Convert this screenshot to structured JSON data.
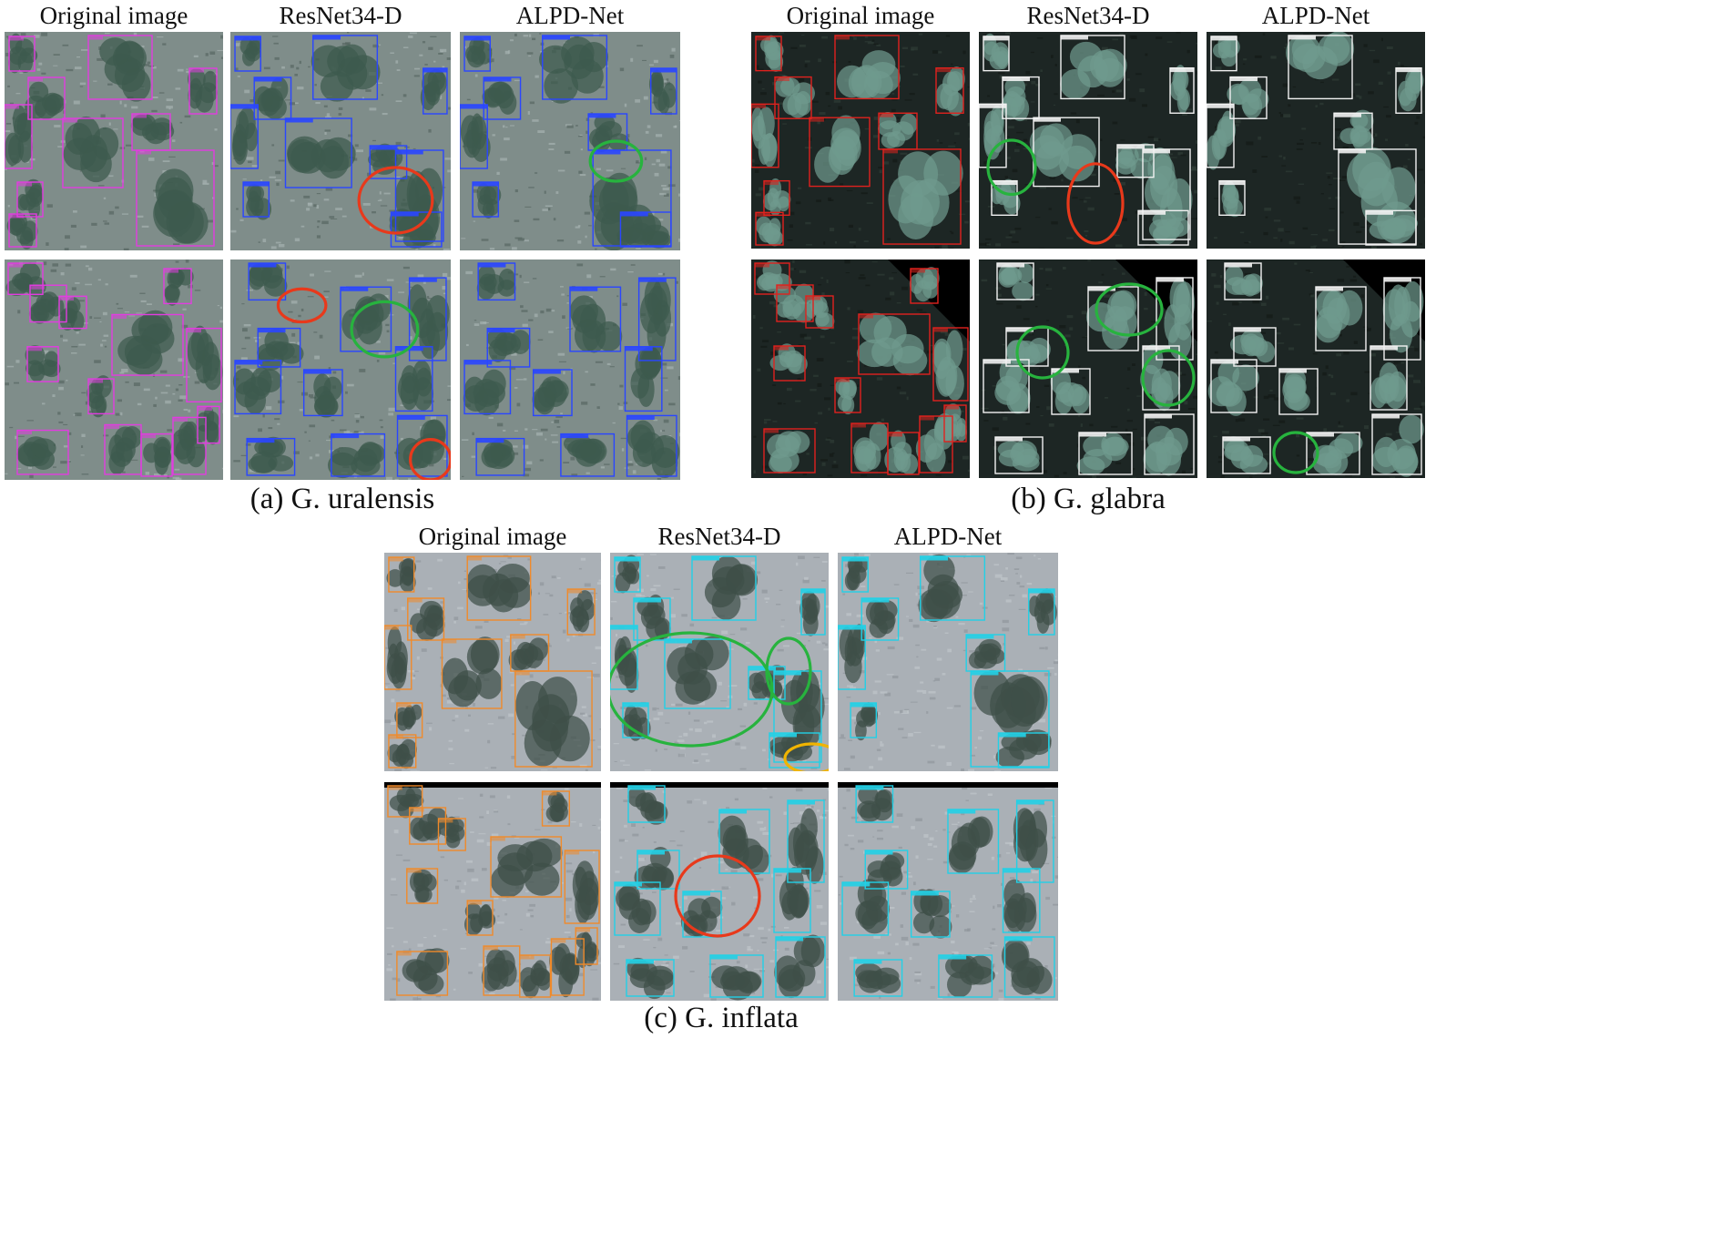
{
  "groups": [
    {
      "id": "uralensis",
      "caption": "(a) G. uralensis",
      "columns": [
        "Original image",
        "ResNet34-D",
        "ALPD-Net"
      ],
      "label_text": "uralensis",
      "box_colors": {
        "original": "#e23ce0",
        "detection": "#2a46ff"
      },
      "ground_style": "speckle",
      "panels": [
        {
          "id": "a-orig-1",
          "row": 1,
          "column": "Original image",
          "marks": []
        },
        {
          "id": "a-res-1",
          "row": 1,
          "column": "ResNet34-D",
          "marks": [
            {
              "type": "missed",
              "color": "#e8391b"
            }
          ]
        },
        {
          "id": "a-alpd-1",
          "row": 1,
          "column": "ALPD-Net",
          "marks": [
            {
              "type": "false-detection",
              "color": "#27b33e"
            }
          ]
        },
        {
          "id": "a-orig-2",
          "row": 2,
          "column": "Original image",
          "marks": []
        },
        {
          "id": "a-res-2",
          "row": 2,
          "column": "ResNet34-D",
          "marks": [
            {
              "type": "missed",
              "color": "#e8391b"
            },
            {
              "type": "false-detection",
              "color": "#27b33e"
            },
            {
              "type": "missed",
              "color": "#e8391b"
            }
          ]
        },
        {
          "id": "a-alpd-2",
          "row": 2,
          "column": "ALPD-Net",
          "marks": []
        }
      ]
    },
    {
      "id": "glabra",
      "caption": "(b) G. glabra",
      "columns": [
        "Original image",
        "ResNet34-D",
        "ALPD-Net"
      ],
      "label_text": "glabra",
      "box_colors": {
        "original": "#e0221e",
        "detection": "#f2f2f2"
      },
      "ground_style": "dark",
      "panels": [
        {
          "id": "b-orig-1",
          "row": 1,
          "column": "Original image",
          "marks": []
        },
        {
          "id": "b-res-1",
          "row": 1,
          "column": "ResNet34-D",
          "marks": [
            {
              "type": "false-detection",
              "color": "#27b33e"
            },
            {
              "type": "missed",
              "color": "#e8391b"
            }
          ]
        },
        {
          "id": "b-alpd-1",
          "row": 1,
          "column": "ALPD-Net",
          "marks": []
        },
        {
          "id": "b-orig-2",
          "row": 2,
          "column": "Original image",
          "marks": []
        },
        {
          "id": "b-res-2",
          "row": 2,
          "column": "ResNet34-D",
          "marks": [
            {
              "type": "false-detection",
              "color": "#27b33e"
            },
            {
              "type": "false-detection",
              "color": "#27b33e"
            },
            {
              "type": "false-detection",
              "color": "#27b33e"
            }
          ]
        },
        {
          "id": "b-alpd-2",
          "row": 2,
          "column": "ALPD-Net",
          "marks": [
            {
              "type": "false-detection",
              "color": "#27b33e"
            }
          ]
        }
      ]
    },
    {
      "id": "inflata",
      "caption": "(c) G. inflata",
      "columns": [
        "Original image",
        "ResNet34-D",
        "ALPD-Net"
      ],
      "label_text": "inflata",
      "box_colors": {
        "original": "#f08a2a",
        "detection": "#22d0e6"
      },
      "ground_style": "sand",
      "panels": [
        {
          "id": "c-orig-1",
          "row": 1,
          "column": "Original image",
          "marks": []
        },
        {
          "id": "c-res-1",
          "row": 1,
          "column": "ResNet34-D",
          "marks": [
            {
              "type": "false-detection",
              "color": "#27b33e"
            },
            {
              "type": "false-detection",
              "color": "#27b33e"
            },
            {
              "type": "duplicate",
              "color": "#f0b400"
            }
          ]
        },
        {
          "id": "c-alpd-1",
          "row": 1,
          "column": "ALPD-Net",
          "marks": []
        },
        {
          "id": "c-orig-2",
          "row": 2,
          "column": "Original image",
          "marks": []
        },
        {
          "id": "c-res-2",
          "row": 2,
          "column": "ResNet34-D",
          "marks": [
            {
              "type": "missed",
              "color": "#e8391b"
            }
          ]
        },
        {
          "id": "c-alpd-2",
          "row": 2,
          "column": "ALPD-Net",
          "marks": []
        }
      ]
    }
  ]
}
